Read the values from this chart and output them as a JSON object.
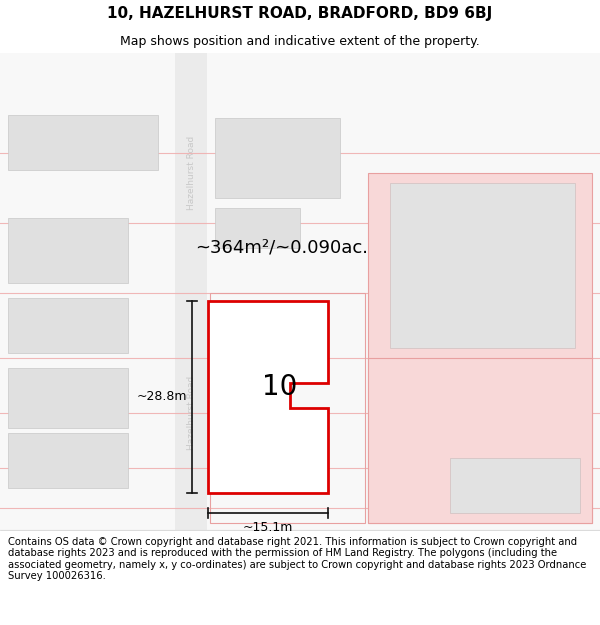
{
  "title": "10, HAZELHURST ROAD, BRADFORD, BD9 6BJ",
  "subtitle": "Map shows position and indicative extent of the property.",
  "footer": "Contains OS data © Crown copyright and database right 2021. This information is subject to Crown copyright and database rights 2023 and is reproduced with the permission of HM Land Registry. The polygons (including the associated geometry, namely x, y co-ordinates) are subject to Crown copyright and database rights 2023 Ordnance Survey 100026316.",
  "area_label": "~364m²/~0.090ac.",
  "width_label": "~15.1m",
  "height_label": "~28.8m",
  "property_number": "10",
  "bg_color": "#f8f8f8",
  "road_fill": "#efefef",
  "building_fill": "#e0e0e0",
  "building_edge": "#c8c8c8",
  "pink_fill": "#f5d5d5",
  "pink_edge": "#e8a0a0",
  "main_plot_fill": "#ffffff",
  "main_plot_edge": "#dd0000",
  "road_line_color": "#f0b0b0",
  "road_text_color": "#c8c8c8",
  "dim_line_color": "#111111",
  "title_fontsize": 11,
  "subtitle_fontsize": 9,
  "footer_fontsize": 7.2,
  "area_fontsize": 13,
  "num_fontsize": 20,
  "dim_fontsize": 9
}
